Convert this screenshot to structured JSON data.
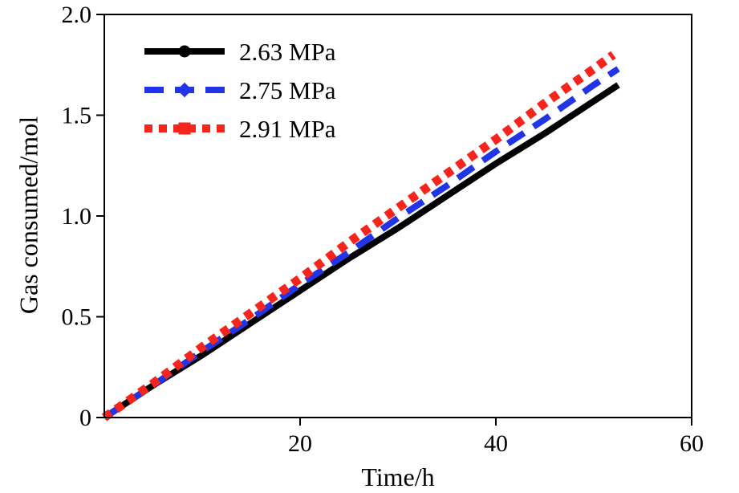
{
  "chart_data": {
    "type": "line",
    "title": "",
    "xlabel": "Time/h",
    "ylabel": "Gas consumed/mol",
    "xlim": [
      0,
      60
    ],
    "ylim": [
      0,
      2.0
    ],
    "xticks": [
      20,
      40,
      60
    ],
    "xtick_labels": [
      "20",
      "40",
      "60"
    ],
    "yticks": [
      0,
      0.5,
      1.0,
      1.5,
      2.0
    ],
    "ytick_labels": [
      "0",
      "0.5",
      "1.0",
      "1.5",
      "2.0"
    ],
    "grid": false,
    "legend_position": "top-left",
    "frame_color": "#000000",
    "series": [
      {
        "name": "2.63 MPa",
        "color": "#000000",
        "line_style": "solid",
        "marker": "circle",
        "x": [
          0,
          5,
          10,
          15,
          20,
          25,
          30,
          35,
          40,
          45,
          50,
          52.5
        ],
        "y": [
          0,
          0.16,
          0.31,
          0.47,
          0.63,
          0.79,
          0.94,
          1.1,
          1.26,
          1.41,
          1.57,
          1.65
        ]
      },
      {
        "name": "2.75 MPa",
        "color": "#2135e6",
        "line_style": "dashed",
        "marker": "diamond",
        "x": [
          0,
          5,
          10,
          15,
          20,
          25,
          30,
          35,
          40,
          45,
          50,
          52.5
        ],
        "y": [
          0,
          0.16,
          0.33,
          0.49,
          0.66,
          0.82,
          0.99,
          1.15,
          1.32,
          1.48,
          1.65,
          1.73
        ]
      },
      {
        "name": "2.91 MPa",
        "color": "#f5241c",
        "line_style": "dotted",
        "marker": "square",
        "x": [
          0,
          5,
          10,
          15,
          20,
          25,
          30,
          35,
          40,
          45,
          50,
          52
        ],
        "y": [
          0,
          0.17,
          0.35,
          0.52,
          0.69,
          0.87,
          1.04,
          1.21,
          1.38,
          1.56,
          1.73,
          1.8
        ]
      }
    ]
  }
}
